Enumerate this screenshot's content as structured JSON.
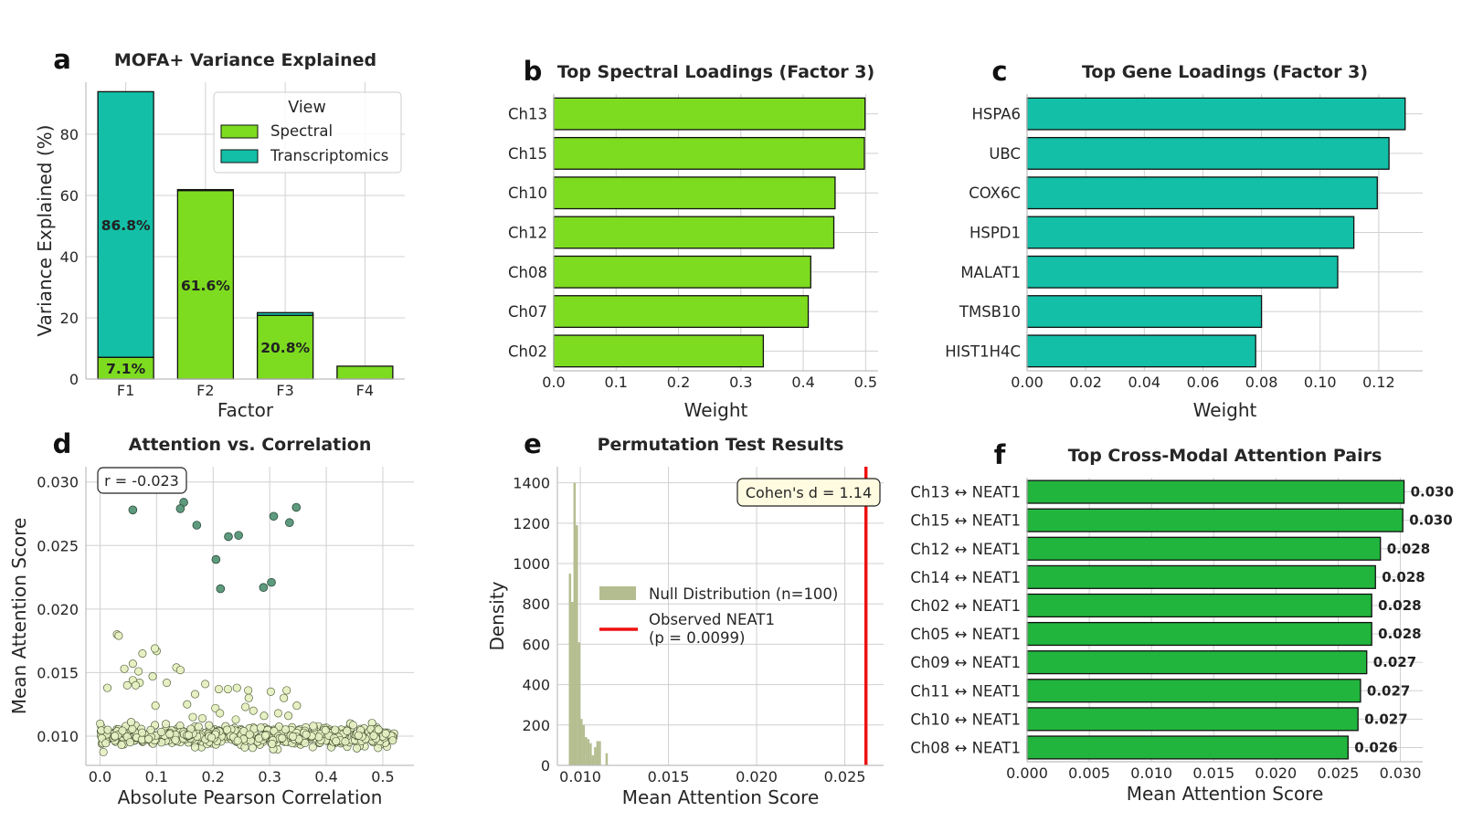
{
  "figure": {
    "panels": [
      "a",
      "b",
      "c",
      "d",
      "e",
      "f"
    ]
  },
  "colors": {
    "spectral": "#7ddc1f",
    "transcriptomics": "#13bfa6",
    "attention_bars": "#22b53e",
    "null_hist": "#b4bd8f",
    "observed_line": "#ee1111",
    "scatter_high": "#5e9b7e",
    "scatter_low": "#e6f0c3"
  },
  "chart_data": [
    {
      "panel": "a",
      "type": "bar",
      "stacked": true,
      "title": "MOFA+ Variance Explained",
      "xlabel": "Factor",
      "ylabel": "Variance Explained (%)",
      "ylim": [
        0,
        97
      ],
      "yticks": [
        0,
        20,
        40,
        60,
        80
      ],
      "categories": [
        "F1",
        "F2",
        "F3",
        "F4"
      ],
      "series": [
        {
          "name": "Spectral",
          "values": [
            7.1,
            61.6,
            20.8,
            4.2
          ]
        },
        {
          "name": "Transcriptomics",
          "values": [
            86.8,
            0.3,
            0.9,
            0.0
          ]
        }
      ],
      "bar_labels": [
        {
          "category": "F1",
          "series": "Spectral",
          "text": "7.1%"
        },
        {
          "category": "F1",
          "series": "Transcriptomics",
          "text": "86.8%"
        },
        {
          "category": "F2",
          "series": "Spectral",
          "text": "61.6%"
        },
        {
          "category": "F3",
          "series": "Spectral",
          "text": "20.8%"
        }
      ],
      "legend": {
        "title": "View",
        "placement": "top-right"
      },
      "grid": true
    },
    {
      "panel": "b",
      "type": "bar",
      "orientation": "horizontal",
      "title": "Top Spectral Loadings (Factor 3)",
      "xlabel": "Weight",
      "ylabel": "",
      "xlim": [
        0,
        0.52
      ],
      "xticks": [
        0.0,
        0.1,
        0.2,
        0.3,
        0.4,
        0.5
      ],
      "tick_format": "0.0",
      "categories": [
        "Ch13",
        "Ch15",
        "Ch10",
        "Ch12",
        "Ch08",
        "Ch07",
        "Ch02"
      ],
      "values": [
        0.499,
        0.498,
        0.451,
        0.449,
        0.412,
        0.408,
        0.336
      ],
      "grid": true
    },
    {
      "panel": "c",
      "type": "bar",
      "orientation": "horizontal",
      "title": "Top Gene Loadings (Factor 3)",
      "xlabel": "Weight",
      "ylabel": "",
      "xlim": [
        0,
        0.135
      ],
      "xticks": [
        0.0,
        0.02,
        0.04,
        0.06,
        0.08,
        0.1,
        0.12
      ],
      "tick_format": "0.00",
      "categories": [
        "HSPA6",
        "UBC",
        "COX6C",
        "HSPD1",
        "MALAT1",
        "TMSB10",
        "HIST1H4C"
      ],
      "values": [
        0.129,
        0.1235,
        0.1195,
        0.1115,
        0.106,
        0.08,
        0.078
      ],
      "grid": true
    },
    {
      "panel": "d",
      "type": "scatter",
      "title": "Attention vs. Correlation",
      "xlabel": "Absolute Pearson Correlation",
      "ylabel": "Mean Attention Score",
      "xlim": [
        -0.025,
        0.555
      ],
      "ylim": [
        0.0077,
        0.0312
      ],
      "xticks": [
        0.0,
        0.1,
        0.2,
        0.3,
        0.4,
        0.5
      ],
      "yticks": [
        0.01,
        0.015,
        0.02,
        0.025,
        0.03
      ],
      "annotation": "r = -0.023",
      "highlighted_points": [
        [
          0.145,
          0.0303
        ],
        [
          0.148,
          0.0284
        ],
        [
          0.142,
          0.0279
        ],
        [
          0.058,
          0.0278
        ],
        [
          0.347,
          0.028
        ],
        [
          0.307,
          0.0273
        ],
        [
          0.335,
          0.0268
        ],
        [
          0.171,
          0.0266
        ],
        [
          0.245,
          0.0258
        ],
        [
          0.227,
          0.0257
        ],
        [
          0.205,
          0.0239
        ],
        [
          0.213,
          0.0216
        ],
        [
          0.303,
          0.0221
        ],
        [
          0.289,
          0.0217
        ]
      ],
      "mid_points": [
        [
          0.03,
          0.018
        ],
        [
          0.033,
          0.0179
        ],
        [
          0.075,
          0.0165
        ],
        [
          0.1,
          0.0167
        ],
        [
          0.097,
          0.0169
        ],
        [
          0.058,
          0.0157
        ],
        [
          0.068,
          0.0151
        ],
        [
          0.043,
          0.0153
        ],
        [
          0.135,
          0.0154
        ],
        [
          0.142,
          0.0152
        ],
        [
          0.093,
          0.0147
        ],
        [
          0.058,
          0.0144
        ],
        [
          0.07,
          0.0142
        ],
        [
          0.118,
          0.0142
        ],
        [
          0.186,
          0.0141
        ],
        [
          0.013,
          0.0138
        ],
        [
          0.048,
          0.014
        ],
        [
          0.063,
          0.014
        ],
        [
          0.21,
          0.0137
        ],
        [
          0.242,
          0.0138
        ],
        [
          0.226,
          0.0137
        ],
        [
          0.262,
          0.0136
        ],
        [
          0.302,
          0.0135
        ],
        [
          0.33,
          0.0136
        ],
        [
          0.168,
          0.0133
        ],
        [
          0.263,
          0.013
        ],
        [
          0.325,
          0.013
        ],
        [
          0.098,
          0.0124
        ],
        [
          0.154,
          0.0125
        ],
        [
          0.348,
          0.0124
        ],
        [
          0.257,
          0.0123
        ],
        [
          0.204,
          0.0122
        ],
        [
          0.271,
          0.012
        ],
        [
          0.212,
          0.0118
        ],
        [
          0.315,
          0.0118
        ],
        [
          0.333,
          0.0116
        ],
        [
          0.29,
          0.0116
        ],
        [
          0.164,
          0.0115
        ],
        [
          0.181,
          0.0114
        ],
        [
          0.24,
          0.0113
        ]
      ],
      "background_cloud": {
        "x_range": [
          0.0,
          0.52
        ],
        "y_center": 0.01,
        "y_spread": 0.0006,
        "n": 620
      },
      "grid": true
    },
    {
      "panel": "e",
      "type": "histogram",
      "title": "Permutation Test Results",
      "xlabel": "Mean Attention Score",
      "ylabel": "Density",
      "xlim": [
        0.0087,
        0.0272
      ],
      "ylim": [
        0,
        1480
      ],
      "xticks": [
        0.01,
        0.015,
        0.02,
        0.025
      ],
      "yticks": [
        0,
        200,
        400,
        600,
        800,
        1000,
        1200,
        1400
      ],
      "bin_width": 0.00013,
      "bin_start": 0.00935,
      "bin_density": [
        950,
        810,
        1400,
        1190,
        610,
        230,
        200,
        140,
        130,
        110,
        50,
        90,
        120,
        120,
        0,
        0,
        60
      ],
      "observed_value": 0.0262,
      "legend": [
        "Null Distribution (n=100)",
        "Observed NEAT1",
        "(p = 0.0099)"
      ],
      "annotation": "Cohen's d = 1.14",
      "grid": true
    },
    {
      "panel": "f",
      "type": "bar",
      "orientation": "horizontal",
      "title": "Top Cross-Modal Attention Pairs",
      "xlabel": "Mean Attention Score",
      "ylabel": "",
      "xlim": [
        0,
        0.0318
      ],
      "xticks": [
        0.0,
        0.005,
        0.01,
        0.015,
        0.02,
        0.025,
        0.03
      ],
      "tick_format": "0.000",
      "categories": [
        "Ch13 ↔ NEAT1",
        "Ch15 ↔ NEAT1",
        "Ch12 ↔ NEAT1",
        "Ch14 ↔ NEAT1",
        "Ch02 ↔ NEAT1",
        "Ch05 ↔ NEAT1",
        "Ch09 ↔ NEAT1",
        "Ch11 ↔ NEAT1",
        "Ch10 ↔ NEAT1",
        "Ch08 ↔ NEAT1"
      ],
      "values": [
        0.0303,
        0.0302,
        0.0284,
        0.028,
        0.0277,
        0.0277,
        0.0273,
        0.0268,
        0.0266,
        0.0258
      ],
      "data_labels": [
        "0.030",
        "0.030",
        "0.028",
        "0.028",
        "0.028",
        "0.028",
        "0.027",
        "0.027",
        "0.027",
        "0.026"
      ],
      "grid": true
    }
  ]
}
